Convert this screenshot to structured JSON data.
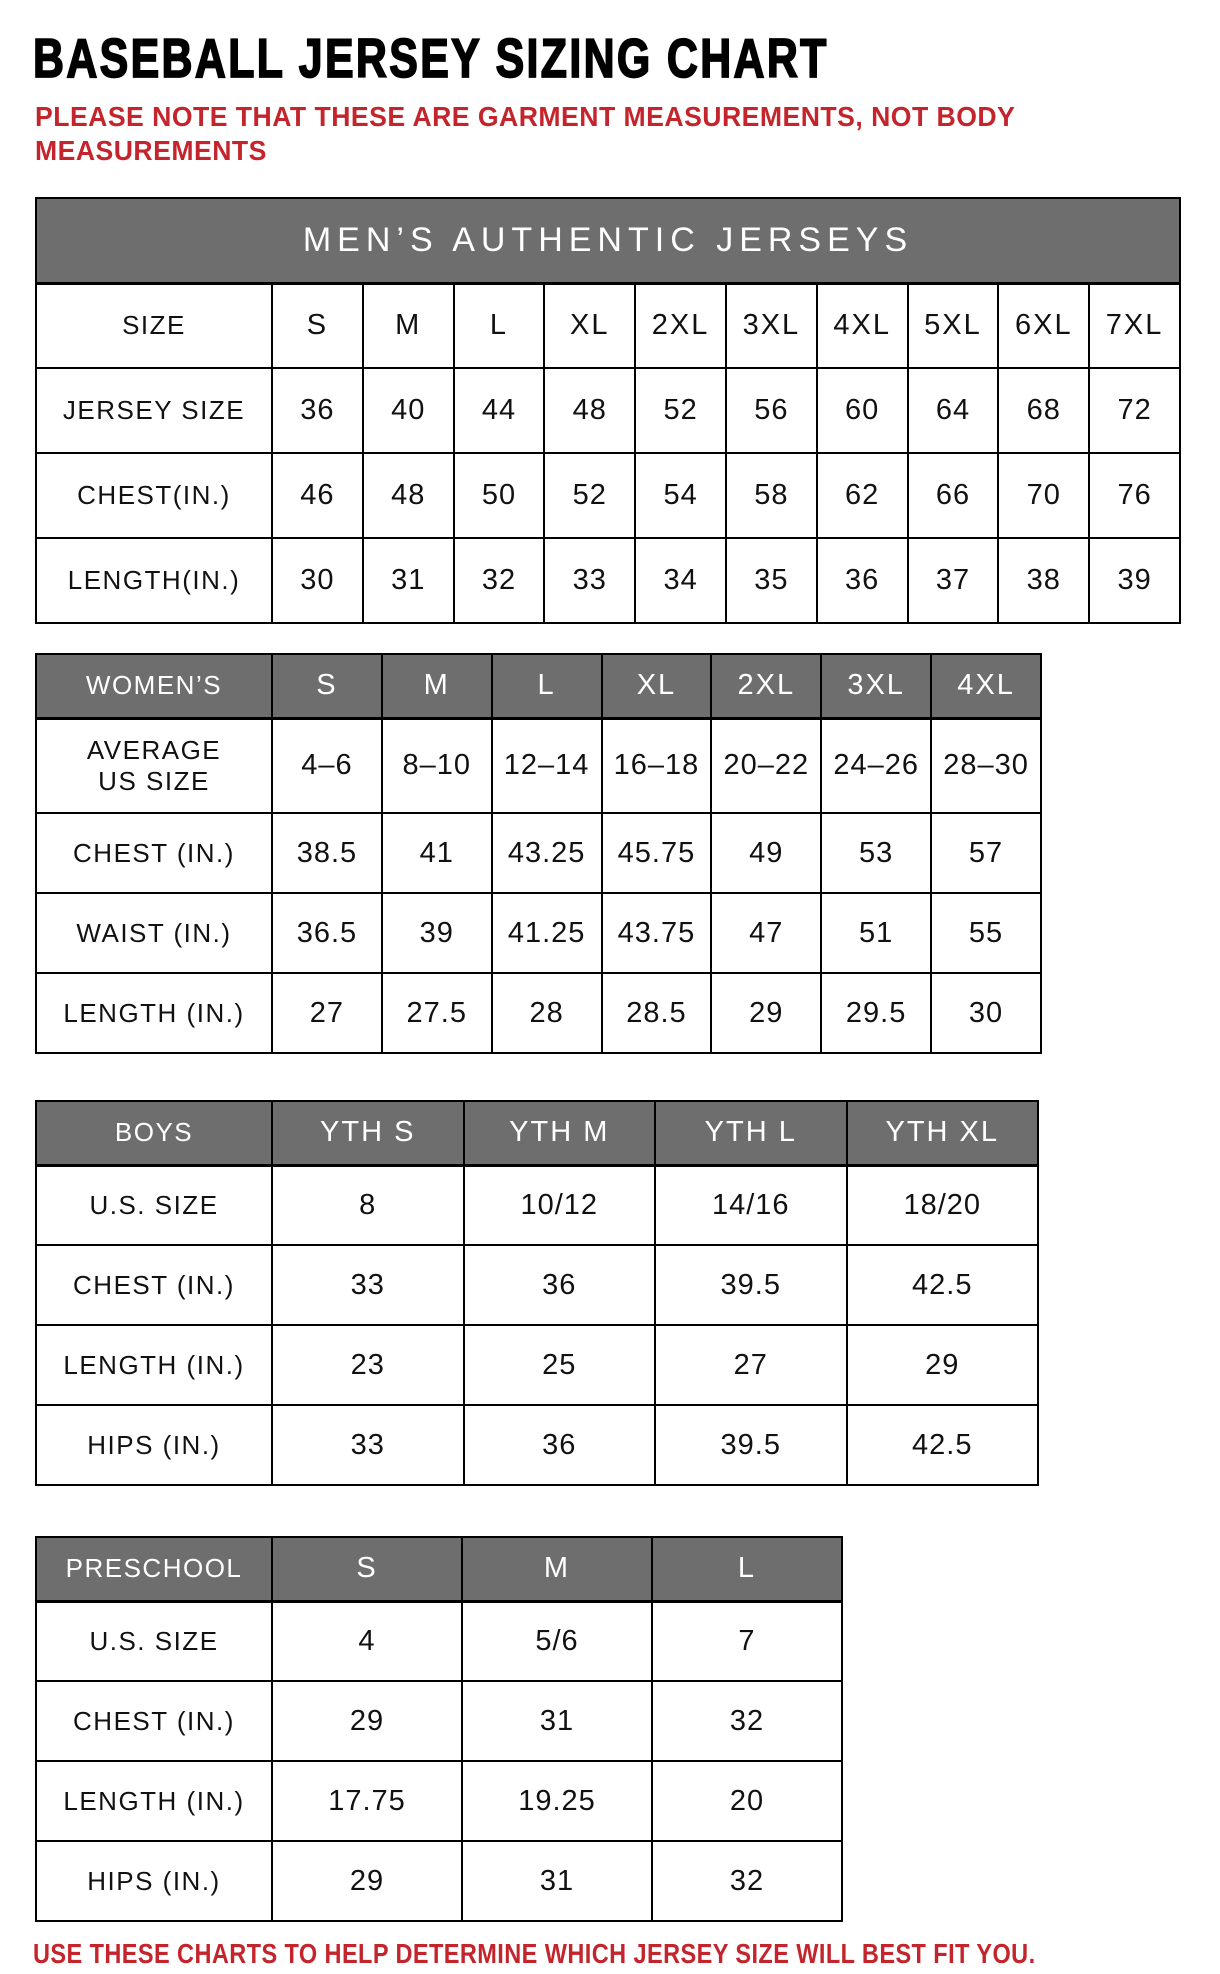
{
  "page": {
    "title": "BASEBALL JERSEY SIZING CHART",
    "note": "PLEASE NOTE THAT THESE ARE GARMENT MEASUREMENTS, NOT BODY\nMEASUREMENTS",
    "footer": "USE THESE CHARTS TO HELP DETERMINE WHICH JERSEY SIZE WILL BEST FIT YOU.",
    "colors": {
      "banner_gray": "#6e6e6e",
      "accent_red": "#c4252c",
      "border_black": "#000000",
      "background": "#ffffff"
    }
  },
  "tables": {
    "mens": {
      "banner": "MEN’S AUTHENTIC JERSEYS",
      "corner_label": "SIZE",
      "columns": [
        "S",
        "M",
        "L",
        "XL",
        "2XL",
        "3XL",
        "4XL",
        "5XL",
        "6XL",
        "7XL"
      ],
      "rows": [
        {
          "label": "JERSEY SIZE",
          "values": [
            "36",
            "40",
            "44",
            "48",
            "52",
            "56",
            "60",
            "64",
            "68",
            "72"
          ]
        },
        {
          "label": "CHEST(IN.)",
          "values": [
            "46",
            "48",
            "50",
            "52",
            "54",
            "58",
            "62",
            "66",
            "70",
            "76"
          ]
        },
        {
          "label": "LENGTH(IN.)",
          "values": [
            "30",
            "31",
            "32",
            "33",
            "34",
            "35",
            "36",
            "37",
            "38",
            "39"
          ]
        }
      ]
    },
    "womens": {
      "corner_label": "WOMEN’S",
      "columns": [
        "S",
        "M",
        "L",
        "XL",
        "2XL",
        "3XL",
        "4XL"
      ],
      "rows": [
        {
          "label": "AVERAGE\nUS SIZE",
          "values": [
            "4–6",
            "8–10",
            "12–14",
            "16–18",
            "20–22",
            "24–26",
            "28–30"
          ]
        },
        {
          "label": "CHEST (IN.)",
          "values": [
            "38.5",
            "41",
            "43.25",
            "45.75",
            "49",
            "53",
            "57"
          ]
        },
        {
          "label": "WAIST (IN.)",
          "values": [
            "36.5",
            "39",
            "41.25",
            "43.75",
            "47",
            "51",
            "55"
          ]
        },
        {
          "label": "LENGTH (IN.)",
          "values": [
            "27",
            "27.5",
            "28",
            "28.5",
            "29",
            "29.5",
            "30"
          ]
        }
      ]
    },
    "boys": {
      "corner_label": "BOYS",
      "columns": [
        "YTH S",
        "YTH M",
        "YTH L",
        "YTH XL"
      ],
      "rows": [
        {
          "label": "U.S. SIZE",
          "values": [
            "8",
            "10/12",
            "14/16",
            "18/20"
          ]
        },
        {
          "label": "CHEST (IN.)",
          "values": [
            "33",
            "36",
            "39.5",
            "42.5"
          ]
        },
        {
          "label": "LENGTH (IN.)",
          "values": [
            "23",
            "25",
            "27",
            "29"
          ]
        },
        {
          "label": "HIPS (IN.)",
          "values": [
            "33",
            "36",
            "39.5",
            "42.5"
          ]
        }
      ]
    },
    "preschool": {
      "corner_label": "PRESCHOOL",
      "columns": [
        "S",
        "M",
        "L"
      ],
      "rows": [
        {
          "label": "U.S. SIZE",
          "values": [
            "4",
            "5/6",
            "7"
          ]
        },
        {
          "label": "CHEST (IN.)",
          "values": [
            "29",
            "31",
            "32"
          ]
        },
        {
          "label": "LENGTH (IN.)",
          "values": [
            "17.75",
            "19.25",
            "20"
          ]
        },
        {
          "label": "HIPS (IN.)",
          "values": [
            "29",
            "31",
            "32"
          ]
        }
      ]
    }
  }
}
